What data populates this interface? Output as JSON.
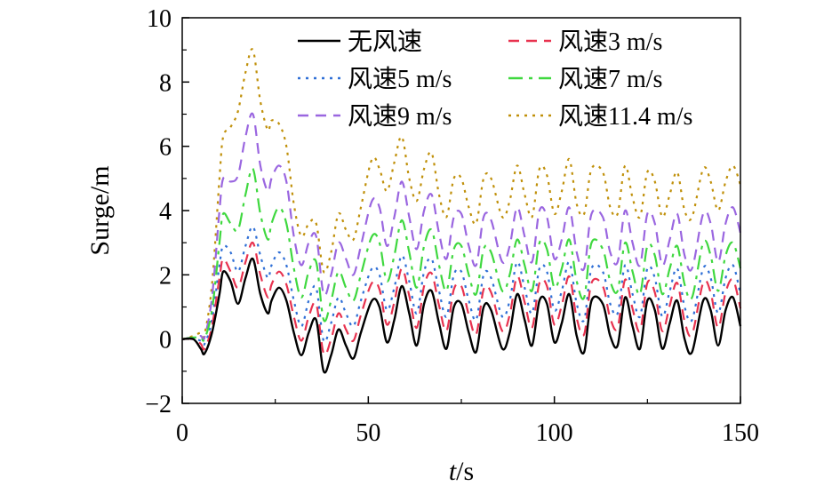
{
  "chart_data": {
    "type": "line",
    "title": "",
    "xlabel_italic": "t",
    "xlabel_unit": "/s",
    "ylabel": "Surge/m",
    "xlim": [
      0,
      150
    ],
    "ylim": [
      -2,
      10
    ],
    "xticks": [
      "0",
      "50",
      "100",
      "150"
    ],
    "yticks": [
      "−2",
      "0",
      "2",
      "4",
      "6",
      "8",
      "10"
    ],
    "grid": false,
    "legend_position": "top-right",
    "series": [
      {
        "name": "无风速",
        "color": "#000000",
        "dash": "solid",
        "x": [
          0,
          3,
          5,
          6,
          8,
          10,
          11,
          13,
          15,
          17,
          19,
          21,
          23,
          24,
          26,
          28,
          30,
          32,
          34,
          36,
          38,
          40,
          42,
          44,
          46,
          48,
          51,
          53,
          55,
          57,
          59,
          61,
          63,
          65,
          67,
          69,
          71,
          73,
          75,
          77,
          79,
          81,
          83,
          86,
          88,
          90,
          92,
          94,
          96,
          98,
          100,
          102,
          104,
          106,
          108,
          110,
          113,
          115,
          117,
          119,
          121,
          123,
          125,
          127,
          129,
          131,
          133,
          135,
          137,
          140,
          142,
          144,
          146,
          148,
          150
        ],
        "y": [
          0,
          0,
          -0.3,
          -0.45,
          0.2,
          1.4,
          2.1,
          1.8,
          1.1,
          1.9,
          2.5,
          1.4,
          0.8,
          1.2,
          1.6,
          1.2,
          0.2,
          -0.5,
          0.2,
          0.6,
          -1.0,
          -0.5,
          0.3,
          -0.2,
          -0.6,
          0.2,
          1.2,
          1.0,
          -0.1,
          0.6,
          1.65,
          0.8,
          -0.2,
          1.1,
          1.5,
          0.5,
          -0.3,
          1.0,
          1.1,
          0.2,
          -0.4,
          1.0,
          0.9,
          -0.3,
          0.2,
          1.4,
          0.6,
          -0.2,
          1.2,
          1.1,
          -0.1,
          0.5,
          1.4,
          0.1,
          -0.4,
          1.2,
          1.1,
          0.1,
          -0.2,
          1.3,
          0.4,
          -0.3,
          1.2,
          0.9,
          -0.3,
          0.5,
          1.2,
          0.0,
          -0.4,
          1.2,
          0.9,
          -0.2,
          0.9,
          1.3,
          0.4
        ]
      },
      {
        "name": "风速3 m/s",
        "color": "#e8324f",
        "dash": "dash",
        "x": [
          0,
          3,
          5,
          6,
          8,
          10,
          11,
          13,
          15,
          17,
          19,
          21,
          23,
          24,
          26,
          28,
          30,
          32,
          34,
          36,
          38,
          40,
          42,
          44,
          46,
          48,
          51,
          53,
          55,
          57,
          59,
          61,
          63,
          65,
          67,
          69,
          71,
          73,
          75,
          77,
          79,
          81,
          83,
          86,
          88,
          90,
          92,
          94,
          96,
          98,
          100,
          102,
          104,
          106,
          108,
          110,
          113,
          115,
          117,
          119,
          121,
          123,
          125,
          127,
          129,
          131,
          133,
          135,
          137,
          140,
          142,
          144,
          146,
          148,
          150
        ],
        "y": [
          0,
          0,
          -0.15,
          -0.3,
          0.4,
          1.9,
          2.5,
          2.1,
          1.6,
          2.4,
          3.0,
          2.0,
          1.3,
          1.7,
          2.1,
          1.7,
          0.7,
          -0.05,
          0.7,
          1.1,
          -0.45,
          0.0,
          0.8,
          0.3,
          -0.05,
          0.75,
          1.75,
          1.55,
          0.45,
          1.15,
          2.2,
          1.35,
          0.35,
          1.65,
          2.05,
          1.05,
          0.25,
          1.55,
          1.65,
          0.75,
          0.15,
          1.55,
          1.45,
          0.25,
          0.75,
          1.95,
          1.15,
          0.35,
          1.75,
          1.65,
          0.45,
          1.05,
          1.95,
          0.65,
          0.15,
          1.75,
          1.65,
          0.65,
          0.35,
          1.85,
          0.95,
          0.25,
          1.75,
          1.45,
          0.25,
          1.05,
          1.75,
          0.55,
          0.15,
          1.75,
          1.45,
          0.35,
          1.45,
          1.85,
          0.95
        ]
      },
      {
        "name": "风速5 m/s",
        "color": "#2f6fd6",
        "dash": "dot",
        "x": [
          0,
          3,
          5,
          6,
          8,
          10,
          11,
          13,
          15,
          17,
          19,
          21,
          23,
          24,
          26,
          28,
          30,
          32,
          34,
          36,
          38,
          40,
          42,
          44,
          46,
          48,
          51,
          53,
          55,
          57,
          59,
          61,
          63,
          65,
          67,
          69,
          71,
          73,
          75,
          77,
          79,
          81,
          83,
          86,
          88,
          90,
          92,
          94,
          96,
          98,
          100,
          102,
          104,
          106,
          108,
          110,
          113,
          115,
          117,
          119,
          121,
          123,
          125,
          127,
          129,
          131,
          133,
          135,
          137,
          140,
          142,
          144,
          146,
          148,
          150
        ],
        "y": [
          0,
          0,
          -0.05,
          -0.15,
          0.6,
          2.3,
          2.9,
          2.7,
          2.1,
          2.9,
          3.5,
          2.6,
          1.9,
          2.3,
          2.7,
          2.3,
          1.2,
          0.4,
          1.2,
          1.6,
          -0.05,
          0.5,
          1.3,
          0.8,
          0.4,
          1.2,
          2.2,
          2.0,
          0.9,
          1.6,
          2.6,
          1.8,
          0.8,
          2.1,
          2.5,
          1.5,
          0.7,
          2.0,
          2.1,
          1.2,
          0.6,
          2.0,
          1.9,
          0.7,
          1.2,
          2.4,
          1.6,
          0.8,
          2.2,
          2.1,
          0.9,
          1.5,
          2.4,
          1.1,
          0.6,
          2.2,
          2.1,
          1.1,
          0.8,
          2.3,
          1.4,
          0.7,
          2.2,
          1.9,
          0.7,
          1.5,
          2.2,
          1.0,
          0.6,
          2.2,
          1.9,
          0.8,
          1.9,
          2.3,
          1.4
        ]
      },
      {
        "name": "风速7 m/s",
        "color": "#3fd83f",
        "dash": "dashdot",
        "x": [
          0,
          3,
          5,
          6,
          8,
          10,
          11,
          13,
          15,
          17,
          19,
          21,
          23,
          24,
          26,
          28,
          30,
          32,
          34,
          36,
          38,
          40,
          42,
          44,
          46,
          48,
          51,
          53,
          55,
          57,
          59,
          61,
          63,
          65,
          67,
          69,
          71,
          73,
          75,
          77,
          79,
          81,
          83,
          86,
          88,
          90,
          92,
          94,
          96,
          98,
          100,
          102,
          104,
          106,
          108,
          110,
          113,
          115,
          117,
          119,
          121,
          123,
          125,
          127,
          129,
          131,
          133,
          135,
          137,
          140,
          142,
          144,
          146,
          148,
          150
        ],
        "y": [
          0,
          0.05,
          0.05,
          0.0,
          0.9,
          3.0,
          3.9,
          3.6,
          3.4,
          4.5,
          5.3,
          3.9,
          3.1,
          3.6,
          4.1,
          3.6,
          2.2,
          1.3,
          2.1,
          2.4,
          0.6,
          1.2,
          2.1,
          1.6,
          1.2,
          2.0,
          3.2,
          3.0,
          1.8,
          2.6,
          3.7,
          2.7,
          1.6,
          2.9,
          3.4,
          2.3,
          1.5,
          2.8,
          2.9,
          2.0,
          1.4,
          2.8,
          2.7,
          1.5,
          2.0,
          3.1,
          2.3,
          1.5,
          3.0,
          2.8,
          1.6,
          2.2,
          3.1,
          1.8,
          1.3,
          3.0,
          2.8,
          1.8,
          1.5,
          3.0,
          2.1,
          1.4,
          2.9,
          2.6,
          1.4,
          2.2,
          2.9,
          1.7,
          1.3,
          3.0,
          2.6,
          1.5,
          2.6,
          3.0,
          2.2
        ]
      },
      {
        "name": "风速9 m/s",
        "color": "#9a66e0",
        "dash": "dash",
        "x": [
          0,
          3,
          5,
          6,
          8,
          10,
          11,
          13,
          15,
          17,
          19,
          21,
          23,
          24,
          26,
          28,
          30,
          32,
          34,
          36,
          38,
          40,
          42,
          44,
          46,
          48,
          51,
          53,
          55,
          57,
          59,
          61,
          63,
          65,
          67,
          69,
          71,
          73,
          75,
          77,
          79,
          81,
          83,
          86,
          88,
          90,
          92,
          94,
          96,
          98,
          100,
          102,
          104,
          106,
          108,
          110,
          113,
          115,
          117,
          119,
          121,
          123,
          125,
          127,
          129,
          131,
          133,
          135,
          137,
          140,
          142,
          144,
          146,
          148,
          150
        ],
        "y": [
          0,
          0.05,
          0.1,
          0.05,
          1.3,
          4.0,
          5.0,
          4.9,
          5.1,
          6.3,
          7.0,
          5.4,
          4.6,
          5.0,
          5.4,
          4.9,
          3.2,
          2.3,
          3.0,
          3.2,
          1.4,
          2.0,
          3.0,
          2.5,
          2.0,
          2.9,
          4.3,
          4.1,
          2.9,
          3.8,
          4.9,
          3.8,
          2.8,
          4.0,
          4.5,
          3.3,
          2.5,
          3.8,
          3.9,
          2.9,
          2.3,
          3.8,
          3.7,
          2.4,
          2.9,
          4.1,
          3.2,
          2.4,
          4.0,
          3.8,
          2.5,
          3.1,
          4.1,
          2.7,
          2.2,
          3.9,
          3.8,
          2.7,
          2.4,
          4.0,
          3.0,
          2.3,
          3.9,
          3.6,
          2.3,
          3.1,
          3.9,
          2.6,
          2.2,
          3.9,
          3.6,
          2.4,
          3.6,
          4.1,
          3.3
        ]
      },
      {
        "name": "风速11.4 m/s",
        "color": "#c0900a",
        "dash": "dot",
        "x": [
          0,
          3,
          5,
          6,
          8,
          10,
          11,
          13,
          15,
          17,
          19,
          21,
          23,
          24,
          26,
          28,
          30,
          32,
          34,
          36,
          38,
          40,
          42,
          44,
          46,
          48,
          51,
          53,
          55,
          57,
          59,
          61,
          63,
          65,
          67,
          69,
          71,
          73,
          75,
          77,
          79,
          81,
          83,
          86,
          88,
          90,
          92,
          94,
          96,
          98,
          100,
          102,
          104,
          106,
          108,
          110,
          113,
          115,
          117,
          119,
          121,
          123,
          125,
          127,
          129,
          131,
          133,
          135,
          137,
          140,
          142,
          144,
          146,
          148,
          150
        ],
        "y": [
          0,
          0.1,
          0.2,
          0.15,
          1.7,
          5.0,
          6.3,
          6.6,
          7.1,
          8.3,
          9.0,
          7.4,
          6.5,
          6.8,
          6.7,
          6.0,
          4.2,
          3.2,
          3.6,
          3.6,
          2.1,
          2.7,
          3.9,
          3.4,
          3.1,
          4.1,
          5.6,
          5.3,
          4.6,
          5.5,
          6.3,
          5.0,
          4.3,
          5.3,
          5.8,
          4.5,
          3.8,
          5.0,
          5.0,
          4.1,
          3.6,
          5.0,
          5.0,
          3.8,
          4.3,
          5.4,
          4.5,
          3.8,
          5.3,
          5.1,
          3.9,
          4.6,
          5.6,
          4.2,
          3.9,
          5.3,
          5.2,
          4.1,
          3.9,
          5.4,
          4.4,
          3.8,
          5.2,
          4.9,
          3.8,
          4.5,
          5.2,
          4.0,
          3.8,
          5.3,
          4.9,
          4.0,
          4.9,
          5.4,
          4.8
        ]
      }
    ]
  }
}
